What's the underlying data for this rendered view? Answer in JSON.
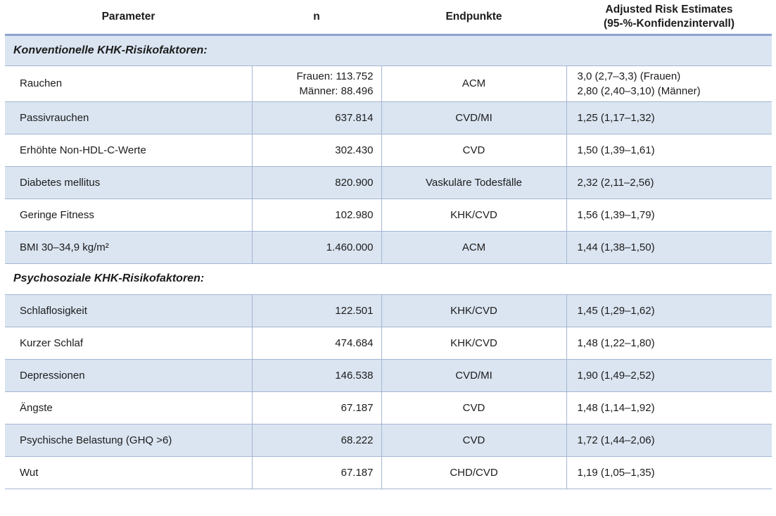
{
  "table": {
    "colors": {
      "row_shade": "#dbe5f1",
      "border": "#a3b6d3",
      "header_border": "#8fa3cc",
      "text": "#1c1c1c"
    },
    "columns": [
      {
        "label": "Parameter"
      },
      {
        "label": "n"
      },
      {
        "label": "Endpunkte"
      },
      {
        "label": "Adjusted Risk Estimates",
        "label_line2": "(95-%-Konfidenzintervall)"
      }
    ],
    "sections": [
      {
        "title": "Konventionelle KHK-Risikofaktoren:",
        "rows": [
          {
            "parameter": "Rauchen",
            "n": [
              "Frauen: 113.752",
              "Männer: 88.496"
            ],
            "endpunkt": "ACM",
            "risk": [
              "3,0 (2,7–3,3) (Frauen)",
              "2,80 (2,40–3,10) (Männer)"
            ]
          },
          {
            "parameter": "Passivrauchen",
            "n": "637.814",
            "endpunkt": "CVD/MI",
            "risk": "1,25 (1,17–1,32)"
          },
          {
            "parameter": "Erhöhte Non-HDL-C-Werte",
            "n": "302.430",
            "endpunkt": "CVD",
            "risk": "1,50 (1,39–1,61)"
          },
          {
            "parameter": "Diabetes mellitus",
            "n": "820.900",
            "endpunkt": "Vaskuläre Todesfälle",
            "risk": "2,32 (2,11–2,56)"
          },
          {
            "parameter": "Geringe Fitness",
            "n": "102.980",
            "endpunkt": "KHK/CVD",
            "risk": "1,56 (1,39–1,79)"
          },
          {
            "parameter": "BMI 30–34,9 kg/m²",
            "n": "1.460.000",
            "endpunkt": "ACM",
            "risk": "1,44 (1,38–1,50)"
          }
        ]
      },
      {
        "title": "Psychosoziale KHK-Risikofaktoren:",
        "rows": [
          {
            "parameter": "Schlaflosigkeit",
            "n": "122.501",
            "endpunkt": "KHK/CVD",
            "risk": "1,45 (1,29–1,62)"
          },
          {
            "parameter": "Kurzer Schlaf",
            "n": "474.684",
            "endpunkt": "KHK/CVD",
            "risk": "1,48 (1,22–1,80)"
          },
          {
            "parameter": "Depressionen",
            "n": "146.538",
            "endpunkt": "CVD/MI",
            "risk": "1,90 (1,49–2,52)"
          },
          {
            "parameter": "Ängste",
            "n": "67.187",
            "endpunkt": "CVD",
            "risk": "1,48 (1,14–1,92)"
          },
          {
            "parameter": "Psychische Belastung (GHQ >6)",
            "n": "68.222",
            "endpunkt": "CVD",
            "risk": "1,72 (1,44–2,06)"
          },
          {
            "parameter": "Wut",
            "n": "67.187",
            "endpunkt": "CHD/CVD",
            "risk": "1,19 (1,05–1,35)"
          }
        ]
      }
    ]
  }
}
